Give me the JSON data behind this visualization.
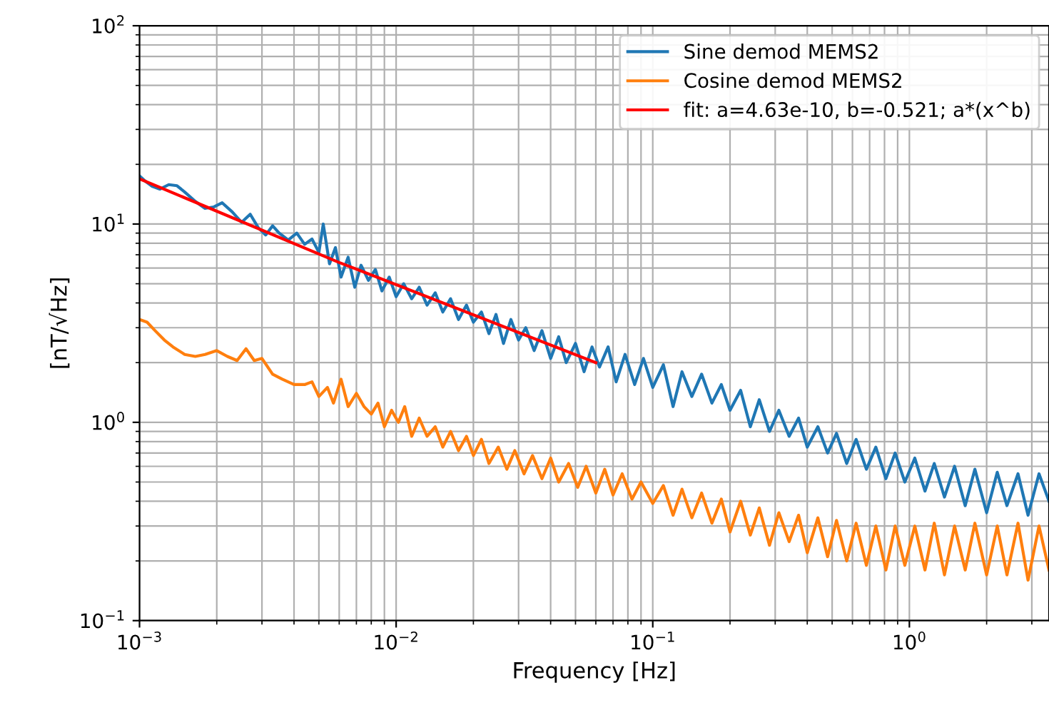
{
  "chart_data": {
    "type": "line",
    "xlabel": "Frequency [Hz]",
    "ylabel": "[nT/√Hz]",
    "log": "xy",
    "grid": true,
    "legend": "top right",
    "xlim": [
      0.001,
      3.5
    ],
    "ylim": [
      0.1,
      100
    ],
    "xticks": [
      {
        "value": 0.001,
        "label": "10$^{−3}$"
      },
      {
        "value": 0.01,
        "label": "10$^{−2}$"
      },
      {
        "value": 0.1,
        "label": "10$^{−1}$"
      },
      {
        "value": 1,
        "label": "10$^{0}$"
      }
    ],
    "yticks": [
      {
        "value": 0.1,
        "label": "10$^{−1}$"
      },
      {
        "value": 1,
        "label": "10$^{0}$"
      },
      {
        "value": 10,
        "label": "10$^{1}$"
      },
      {
        "value": 100,
        "label": "10$^{2}$"
      }
    ],
    "series": [
      {
        "name": "Sine demod MEMS2",
        "color": "#1f77b4",
        "x": [
          0.001,
          0.00105,
          0.00112,
          0.0012,
          0.0013,
          0.0014,
          0.0015,
          0.00165,
          0.0018,
          0.00195,
          0.0021,
          0.0023,
          0.0025,
          0.0027,
          0.0029,
          0.0031,
          0.0033,
          0.0035,
          0.0038,
          0.0041,
          0.0044,
          0.0047,
          0.005,
          0.0052,
          0.0055,
          0.0058,
          0.0061,
          0.0065,
          0.0069,
          0.0073,
          0.0078,
          0.0083,
          0.0088,
          0.0094,
          0.01,
          0.0107,
          0.0115,
          0.0123,
          0.0132,
          0.0142,
          0.0152,
          0.0163,
          0.0175,
          0.0188,
          0.02,
          0.0215,
          0.023,
          0.0245,
          0.0262,
          0.028,
          0.03,
          0.032,
          0.0345,
          0.037,
          0.04,
          0.043,
          0.046,
          0.05,
          0.054,
          0.058,
          0.062,
          0.067,
          0.072,
          0.078,
          0.085,
          0.092,
          0.1,
          0.11,
          0.12,
          0.13,
          0.142,
          0.155,
          0.17,
          0.185,
          0.2,
          0.22,
          0.24,
          0.26,
          0.285,
          0.31,
          0.34,
          0.37,
          0.4,
          0.44,
          0.48,
          0.52,
          0.57,
          0.62,
          0.68,
          0.74,
          0.81,
          0.88,
          0.96,
          1.05,
          1.15,
          1.25,
          1.37,
          1.5,
          1.65,
          1.8,
          2.0,
          2.2,
          2.4,
          2.65,
          2.9,
          3.2,
          3.5
        ],
        "values": [
          17.5,
          16.5,
          15.5,
          15.0,
          15.8,
          15.6,
          14.5,
          13.0,
          12.0,
          12.2,
          12.8,
          11.5,
          10.2,
          11.2,
          9.6,
          8.8,
          9.8,
          9.0,
          8.3,
          9.0,
          7.9,
          8.4,
          7.2,
          10.0,
          6.3,
          7.6,
          5.4,
          6.8,
          4.8,
          6.2,
          5.2,
          5.9,
          4.6,
          5.4,
          4.3,
          5.0,
          4.2,
          4.8,
          3.9,
          4.5,
          3.6,
          4.2,
          3.3,
          3.9,
          3.2,
          3.6,
          2.8,
          3.5,
          2.5,
          3.3,
          2.6,
          3.0,
          2.3,
          2.9,
          2.1,
          2.7,
          2.0,
          2.5,
          1.8,
          2.4,
          1.9,
          2.4,
          1.6,
          2.2,
          1.55,
          2.1,
          1.5,
          1.95,
          1.2,
          1.8,
          1.35,
          1.75,
          1.25,
          1.55,
          1.15,
          1.45,
          0.95,
          1.3,
          0.9,
          1.15,
          0.85,
          1.05,
          0.75,
          0.95,
          0.7,
          0.88,
          0.62,
          0.82,
          0.58,
          0.75,
          0.52,
          0.7,
          0.5,
          0.66,
          0.45,
          0.62,
          0.42,
          0.6,
          0.38,
          0.58,
          0.35,
          0.56,
          0.38,
          0.55,
          0.34,
          0.55,
          0.4
        ]
      },
      {
        "name": "Cosine demod MEMS2",
        "color": "#ff7f0e",
        "x": [
          0.001,
          0.00107,
          0.00115,
          0.00125,
          0.00135,
          0.0015,
          0.00165,
          0.0018,
          0.002,
          0.0022,
          0.0024,
          0.0026,
          0.0028,
          0.003,
          0.0033,
          0.0036,
          0.004,
          0.0044,
          0.0047,
          0.005,
          0.0054,
          0.0057,
          0.0061,
          0.0065,
          0.007,
          0.0075,
          0.008,
          0.0085,
          0.009,
          0.0096,
          0.0102,
          0.0108,
          0.0115,
          0.0123,
          0.0132,
          0.0142,
          0.0152,
          0.0163,
          0.0175,
          0.0188,
          0.02,
          0.0215,
          0.023,
          0.025,
          0.027,
          0.029,
          0.0315,
          0.034,
          0.037,
          0.04,
          0.043,
          0.047,
          0.051,
          0.055,
          0.06,
          0.065,
          0.07,
          0.076,
          0.083,
          0.09,
          0.1,
          0.11,
          0.12,
          0.13,
          0.142,
          0.155,
          0.17,
          0.185,
          0.2,
          0.22,
          0.24,
          0.26,
          0.285,
          0.31,
          0.34,
          0.37,
          0.4,
          0.44,
          0.48,
          0.52,
          0.57,
          0.62,
          0.68,
          0.74,
          0.81,
          0.88,
          0.96,
          1.05,
          1.15,
          1.25,
          1.37,
          1.5,
          1.65,
          1.8,
          2.0,
          2.2,
          2.4,
          2.65,
          2.9,
          3.2,
          3.5
        ],
        "values": [
          3.3,
          3.2,
          2.9,
          2.6,
          2.4,
          2.2,
          2.15,
          2.2,
          2.3,
          2.15,
          2.05,
          2.35,
          2.05,
          2.1,
          1.75,
          1.65,
          1.55,
          1.55,
          1.6,
          1.35,
          1.5,
          1.25,
          1.65,
          1.2,
          1.4,
          1.2,
          1.1,
          1.25,
          0.95,
          1.15,
          1.0,
          1.2,
          0.85,
          1.05,
          0.85,
          0.95,
          0.75,
          0.9,
          0.72,
          0.85,
          0.68,
          0.82,
          0.62,
          0.75,
          0.58,
          0.72,
          0.55,
          0.68,
          0.52,
          0.66,
          0.5,
          0.62,
          0.47,
          0.6,
          0.44,
          0.58,
          0.43,
          0.55,
          0.41,
          0.5,
          0.39,
          0.48,
          0.34,
          0.46,
          0.33,
          0.44,
          0.31,
          0.41,
          0.28,
          0.4,
          0.27,
          0.37,
          0.24,
          0.35,
          0.25,
          0.34,
          0.22,
          0.33,
          0.21,
          0.32,
          0.2,
          0.31,
          0.19,
          0.3,
          0.18,
          0.3,
          0.19,
          0.3,
          0.18,
          0.31,
          0.17,
          0.3,
          0.18,
          0.31,
          0.17,
          0.3,
          0.17,
          0.31,
          0.16,
          0.3,
          0.18
        ]
      },
      {
        "name": "fit: a=4.63e-10, b=-0.521; a*(x^b)",
        "color": "#ff0000",
        "x": [
          0.001,
          0.006,
          0.06
        ],
        "values": [
          16.9,
          6.4,
          2.0
        ]
      }
    ]
  }
}
